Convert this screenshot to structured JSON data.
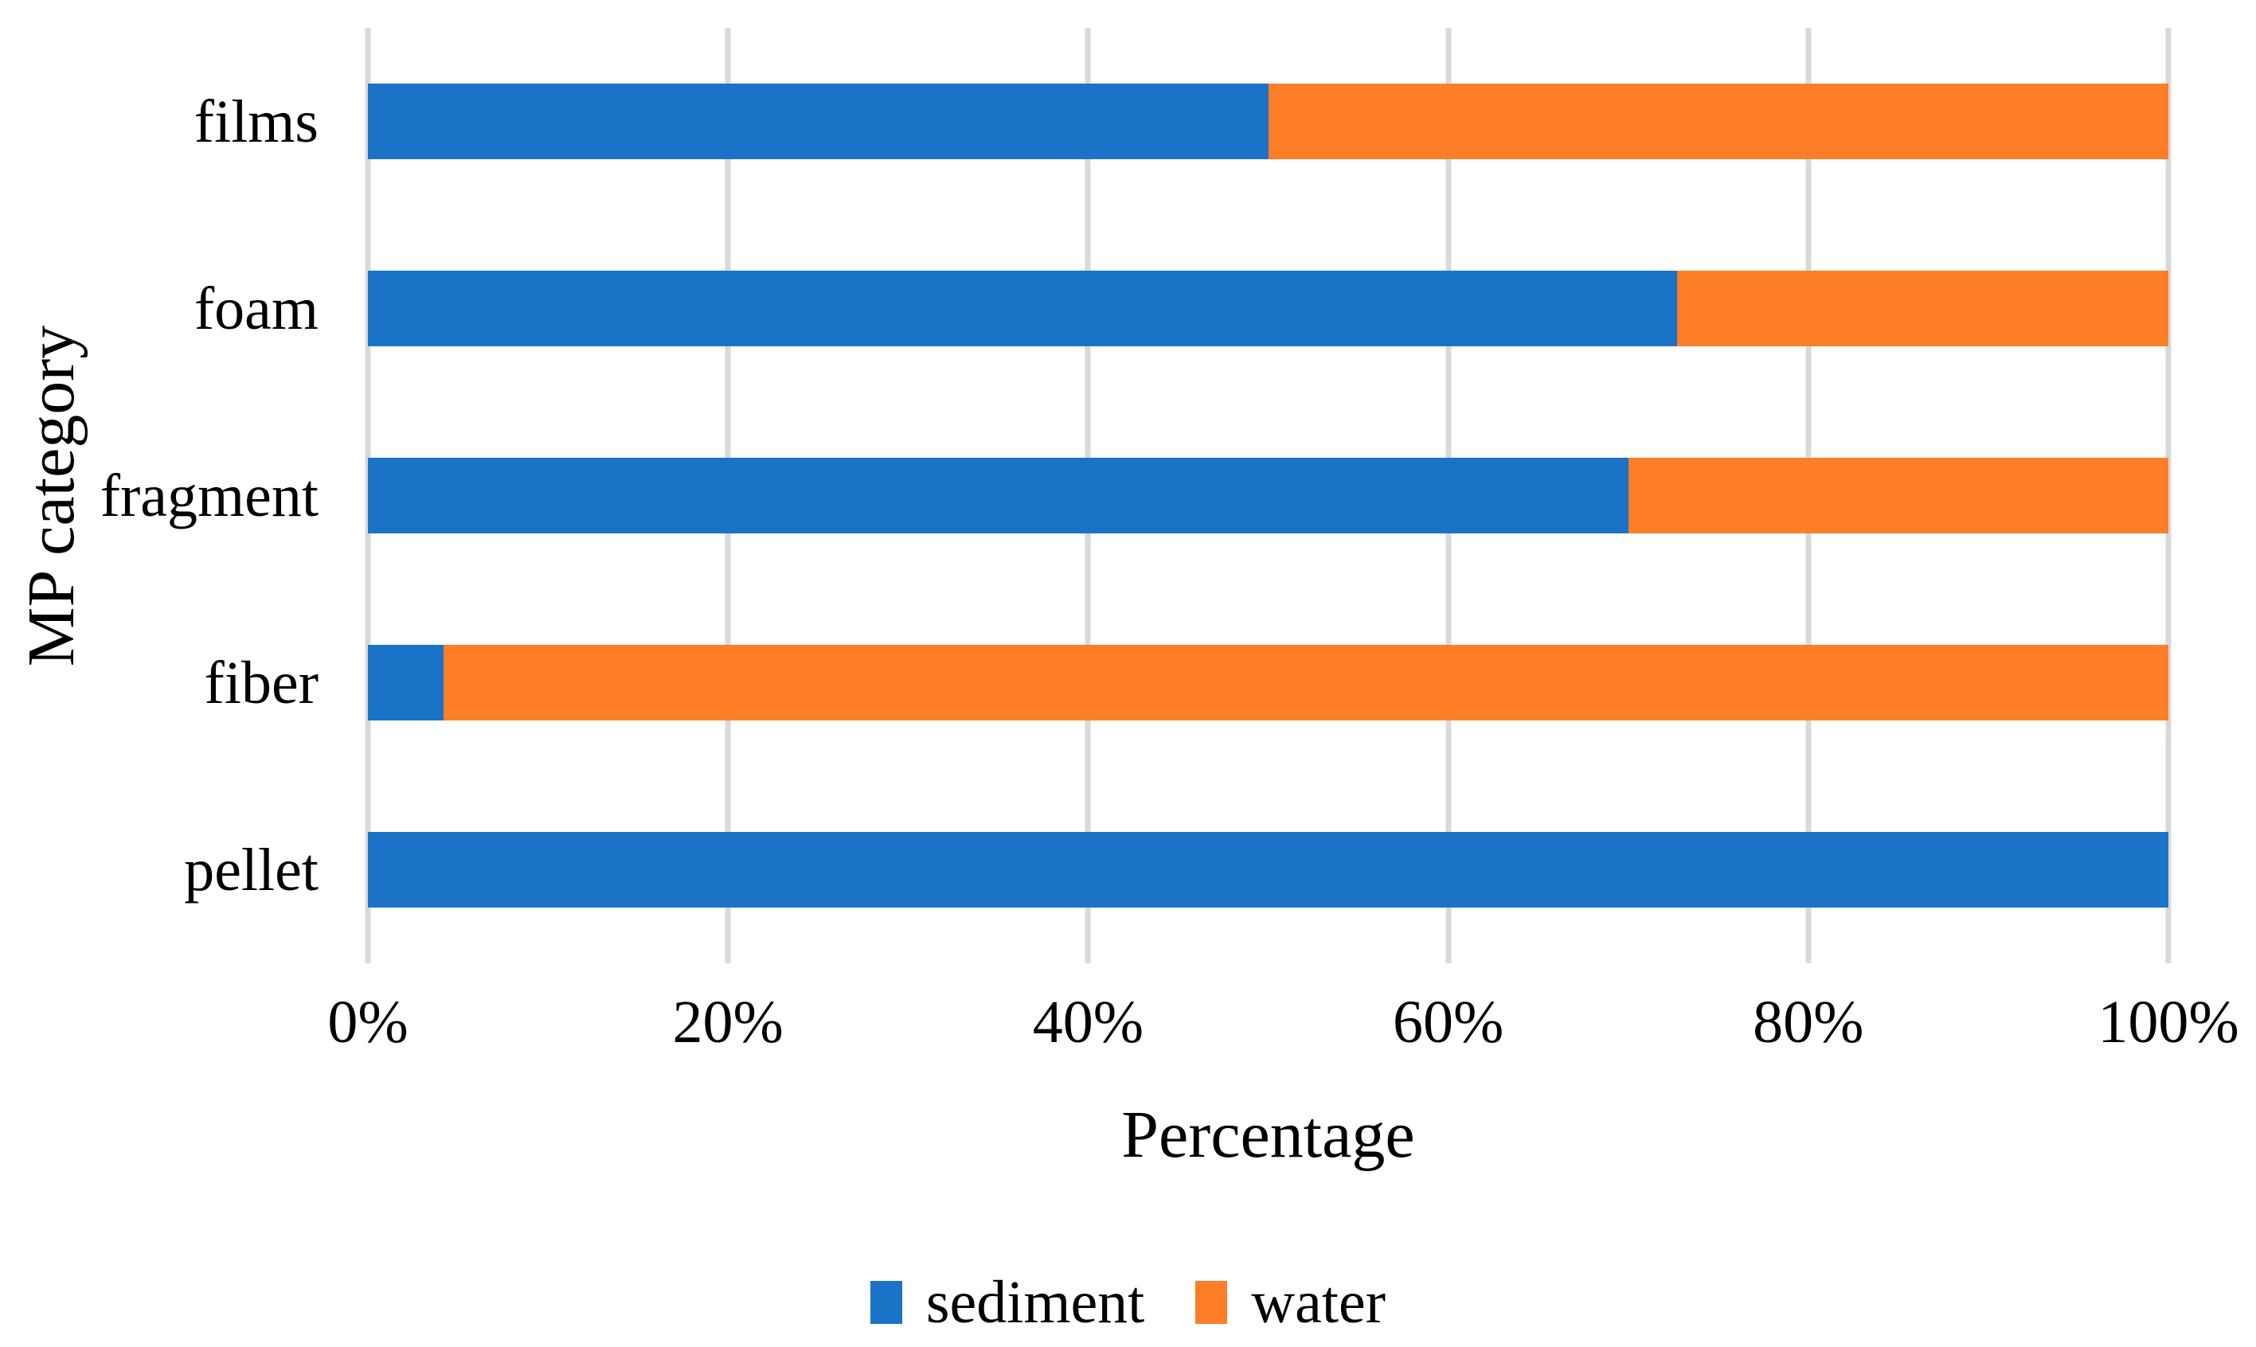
{
  "figure": {
    "background_color": "#ffffff",
    "text_color": "#000000"
  },
  "chart_data": {
    "type": "bar",
    "orientation": "horizontal",
    "stacked": true,
    "title": "",
    "xlabel": "Percentage",
    "ylabel": "MP category",
    "categories": [
      "films",
      "foam",
      "fragment",
      "fiber",
      "pellet"
    ],
    "series": [
      {
        "name": "sediment",
        "color": "#1b73c8",
        "values": [
          50,
          72.7,
          70,
          4.2,
          100
        ]
      },
      {
        "name": "water",
        "color": "#fd7e27",
        "values": [
          50,
          27.3,
          30,
          95.8,
          0
        ]
      }
    ],
    "xlim": [
      0,
      100
    ],
    "x_ticks": [
      {
        "value": 0,
        "label": "0%"
      },
      {
        "value": 20,
        "label": "20%"
      },
      {
        "value": 40,
        "label": "40%"
      },
      {
        "value": 60,
        "label": "60%"
      },
      {
        "value": 80,
        "label": "80%"
      },
      {
        "value": 100,
        "label": "100%"
      }
    ],
    "grid": "vertical",
    "gridline_color": "#d9d9d9",
    "legend_position": "bottom"
  }
}
